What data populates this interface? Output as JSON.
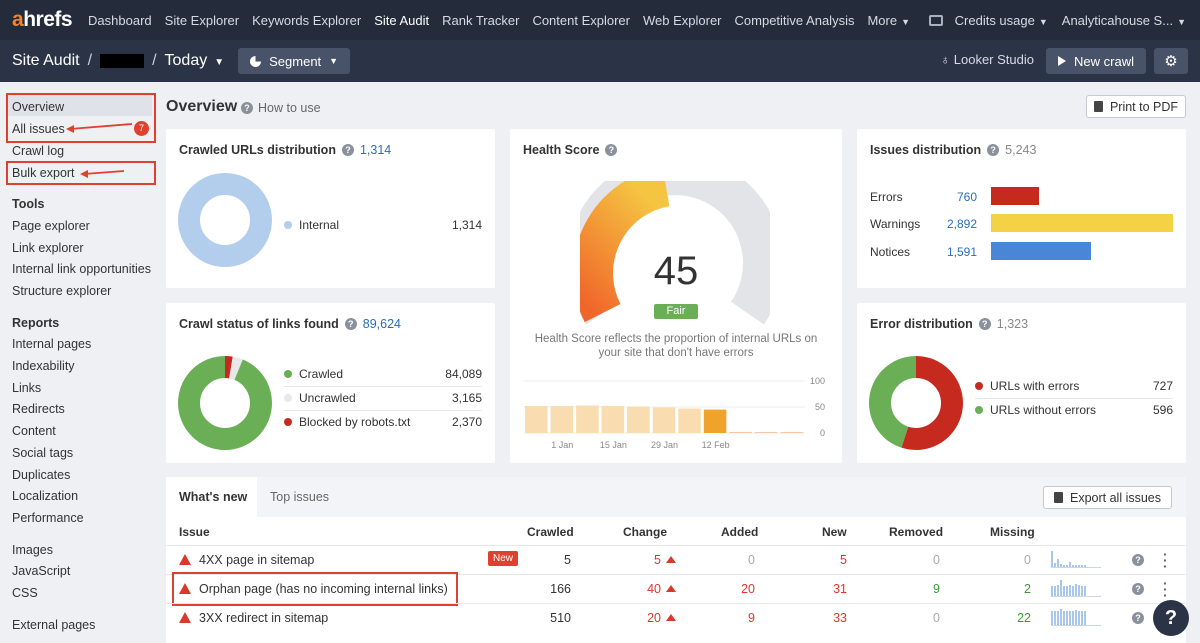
{
  "nav": {
    "logo_a": "a",
    "logo_rest": "hrefs",
    "links": [
      "Dashboard",
      "Site Explorer",
      "Keywords Explorer",
      "Site Audit",
      "Rank Tracker",
      "Content Explorer",
      "Web Explorer",
      "Competitive Analysis",
      "More"
    ],
    "credits": "Credits usage",
    "account": "Analyticahouse S..."
  },
  "subbar": {
    "project": "Site Audit",
    "crawl": "Today",
    "segment": "Segment",
    "looker": "Looker Studio",
    "new_crawl": "New crawl"
  },
  "sidebar": {
    "top": [
      "Overview",
      "All issues",
      "Crawl log",
      "Bulk export"
    ],
    "issues_badge": "7",
    "tools_head": "Tools",
    "tools": [
      "Page explorer",
      "Link explorer",
      "Internal link opportunities",
      "Structure explorer"
    ],
    "reports_head": "Reports",
    "reports": [
      "Internal pages",
      "Indexability",
      "Links",
      "Redirects",
      "Content",
      "Social tags",
      "Duplicates",
      "Localization",
      "Performance"
    ],
    "more": [
      "Images",
      "JavaScript",
      "CSS"
    ],
    "external": "External pages"
  },
  "page": {
    "title": "Overview",
    "how_to": "How to use",
    "print": "Print to PDF"
  },
  "crawled_urls": {
    "title": "Crawled URLs distribution",
    "count": "1,314",
    "legend": [
      {
        "label": "Internal",
        "value": "1,314",
        "color": "#b3cdec"
      }
    ]
  },
  "crawl_status": {
    "title": "Crawl status of links found",
    "count": "89,624",
    "legend": [
      {
        "label": "Crawled",
        "value": "84,089",
        "color": "#6aaf56"
      },
      {
        "label": "Uncrawled",
        "value": "3,165",
        "color": "#e8e8e8"
      },
      {
        "label": "Blocked by robots.txt",
        "value": "2,370",
        "color": "#c62a1f"
      }
    ]
  },
  "health": {
    "title": "Health Score",
    "score": "45",
    "label": "Fair",
    "description": "Health Score reflects the proportion of internal URLs on your site that don't have errors",
    "y_ticks": [
      "100",
      "50",
      "0"
    ],
    "x_ticks": [
      "1 Jan",
      "15 Jan",
      "29 Jan",
      "12 Feb"
    ],
    "bars": [
      52,
      52,
      53,
      52,
      51,
      49,
      47,
      45,
      2,
      2,
      2
    ]
  },
  "issues_dist": {
    "title": "Issues distribution",
    "count": "5,243",
    "rows": [
      {
        "label": "Errors",
        "value": "760",
        "color": "#c62a1f",
        "n": 760
      },
      {
        "label": "Warnings",
        "value": "2,892",
        "color": "#f4d245",
        "n": 2892
      },
      {
        "label": "Notices",
        "value": "1,591",
        "color": "#4a86d8",
        "n": 1591
      }
    ]
  },
  "error_dist": {
    "title": "Error distribution",
    "count": "1,323",
    "legend": [
      {
        "label": "URLs with errors",
        "value": "727",
        "color": "#c62a1f"
      },
      {
        "label": "URLs without errors",
        "value": "596",
        "color": "#6aaf56"
      }
    ]
  },
  "table": {
    "tabs": [
      "What's new",
      "Top issues"
    ],
    "export": "Export all issues",
    "headers": [
      "Issue",
      "Crawled",
      "Change",
      "Added",
      "New",
      "Removed",
      "Missing"
    ],
    "new_badge": "New",
    "rows": [
      {
        "issue": "4XX page in sitemap",
        "crawled": "5",
        "change": "5",
        "added": "0",
        "new": "5",
        "removed": "0",
        "missing": "0"
      },
      {
        "issue": "Orphan page (has no incoming internal links)",
        "crawled": "166",
        "change": "40",
        "added": "20",
        "new": "31",
        "removed": "9",
        "missing": "2"
      },
      {
        "issue": "3XX redirect in sitemap",
        "crawled": "510",
        "change": "20",
        "added": "9",
        "new": "33",
        "removed": "0",
        "missing": "22"
      }
    ]
  },
  "help": "?"
}
